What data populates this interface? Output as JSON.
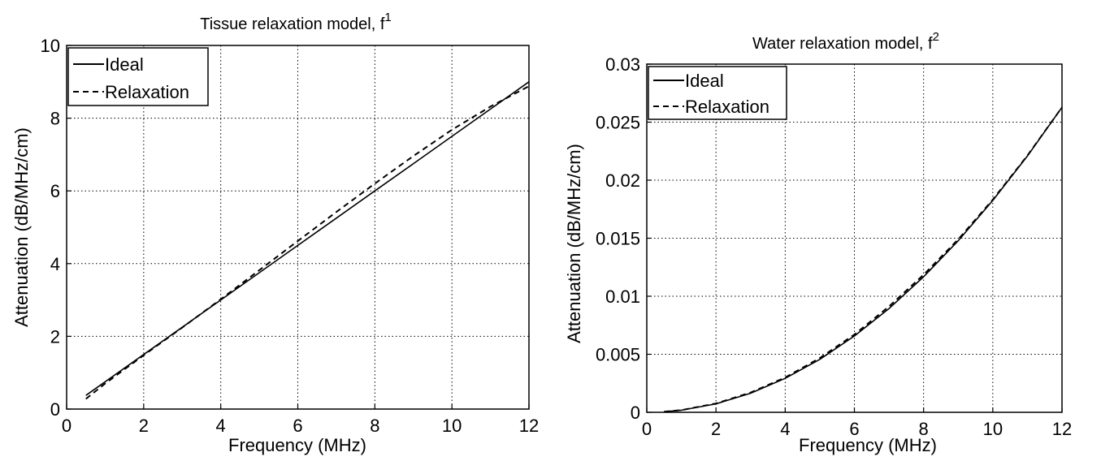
{
  "chart_data": [
    {
      "type": "line",
      "title": "Tissue relaxation model, f",
      "title_sup": "1",
      "xlabel": "Frequency (MHz)",
      "ylabel": "Attenuation (dB/MHz/cm)",
      "xlim": [
        0,
        12
      ],
      "ylim": [
        0,
        10
      ],
      "xticks": [
        "0",
        "2",
        "4",
        "6",
        "8",
        "10",
        "12"
      ],
      "yticks": [
        "0",
        "2",
        "4",
        "6",
        "8",
        "10"
      ],
      "grid": true,
      "legend_position": "top-left",
      "series": [
        {
          "name": "Ideal",
          "style": "solid",
          "x": [
            0.5,
            1,
            2,
            3,
            4,
            5,
            6,
            7,
            8,
            9,
            10,
            11,
            12
          ],
          "y": [
            0.375,
            0.75,
            1.5,
            2.25,
            3.0,
            3.75,
            4.5,
            5.25,
            6.0,
            6.75,
            7.5,
            8.25,
            9.0
          ]
        },
        {
          "name": "Relaxation",
          "style": "dashed",
          "x": [
            0.5,
            1,
            2,
            3,
            4,
            5,
            6,
            7,
            8,
            9,
            10,
            11,
            12
          ],
          "y": [
            0.28,
            0.7,
            1.48,
            2.24,
            3.02,
            3.82,
            4.62,
            5.42,
            6.2,
            6.96,
            7.68,
            8.32,
            8.88
          ]
        }
      ]
    },
    {
      "type": "line",
      "title": "Water relaxation model, f",
      "title_sup": "2",
      "xlabel": "Frequency (MHz)",
      "ylabel": "Attenuation (dB/MHz/cm)",
      "xlim": [
        0,
        12
      ],
      "ylim": [
        0,
        0.03
      ],
      "xticks": [
        "0",
        "2",
        "4",
        "6",
        "8",
        "10",
        "12"
      ],
      "yticks": [
        "0",
        "0.005",
        "0.01",
        "0.015",
        "0.02",
        "0.025",
        "0.03"
      ],
      "grid": true,
      "legend_position": "top-left",
      "series": [
        {
          "name": "Ideal",
          "style": "solid",
          "x": [
            0.5,
            1,
            2,
            3,
            4,
            5,
            6,
            7,
            8,
            9,
            10,
            11,
            12
          ],
          "y": [
            5e-05,
            0.00018,
            0.00073,
            0.00164,
            0.00292,
            0.00456,
            0.00657,
            0.00894,
            0.01168,
            0.01478,
            0.01825,
            0.02208,
            0.02628
          ]
        },
        {
          "name": "Relaxation",
          "style": "dashed",
          "x": [
            0.5,
            1,
            2,
            3,
            4,
            5,
            6,
            7,
            8,
            9,
            10,
            11,
            12
          ],
          "y": [
            5e-05,
            0.00019,
            0.00076,
            0.0017,
            0.003,
            0.00467,
            0.0067,
            0.00912,
            0.01185,
            0.0149,
            0.01832,
            0.02212,
            0.02628
          ]
        }
      ]
    }
  ]
}
